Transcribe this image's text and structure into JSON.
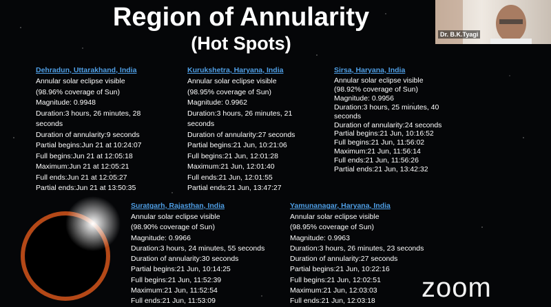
{
  "slide": {
    "title": "Region of Annularity",
    "subtitle": "(Hot Spots)",
    "locations": [
      {
        "name": "Dehradun, Uttarakhand, India",
        "lines": [
          "Annular solar eclipse visible",
          "(98.96% coverage of Sun)",
          "Magnitude: 0.9948",
          "Duration:3 hours, 26 minutes, 28",
          "seconds",
          "Duration of annularity:9 seconds",
          "Partial begins:Jun 21 at 10:24:07",
          "Full begins:Jun 21 at 12:05:18",
          "Maximum:Jun 21 at 12:05:21",
          "Full ends:Jun 21 at 12:05:27",
          "Partial ends:Jun 21 at 13:50:35"
        ]
      },
      {
        "name": "Kurukshetra, Haryana, India",
        "lines": [
          "Annular solar eclipse visible",
          "(98.95% coverage of Sun)",
          "Magnitude: 0.9962",
          "Duration:3 hours, 26 minutes, 21",
          "seconds",
          "Duration of annularity:27 seconds",
          "Partial begins:21 Jun, 10:21:06",
          "Full begins:21 Jun, 12:01:28",
          "Maximum:21 Jun, 12:01:40",
          "Full ends:21 Jun, 12:01:55",
          "Partial ends:21 Jun, 13:47:27"
        ]
      },
      {
        "name": "Sirsa, Haryana, India",
        "lines": [
          "Annular solar eclipse visible",
          "(98.92% coverage of Sun)",
          "Magnitude: 0.9956",
          "Duration:3 hours, 25 minutes, 40",
          "seconds",
          "Duration of annularity:24 seconds",
          "Partial begins:21 Jun, 10:16:52",
          "Full begins:21 Jun, 11:56:02",
          "Maximum:21 Jun, 11:56:14",
          "Full ends:21 Jun, 11:56:26",
          "Partial ends:21 Jun, 13:42:32"
        ]
      },
      {
        "name": "Suratgarh, Rajasthan, India",
        "lines": [
          "Annular solar eclipse visible",
          "(98.90% coverage of Sun)",
          "Magnitude: 0.9966",
          "Duration:3 hours, 24 minutes, 55 seconds",
          "Duration of annularity:30 seconds",
          "Partial begins:21 Jun, 10:14:25",
          "Full begins:21 Jun, 11:52:39",
          "Maximum:21 Jun, 11:52:54",
          "Full ends:21 Jun, 11:53:09"
        ]
      },
      {
        "name": "Yamunanagar, Haryana, India",
        "lines": [
          "Annular solar eclipse visible",
          "(98.95% coverage of Sun)",
          "Magnitude: 0.9963",
          "Duration:3 hours, 26 minutes, 23 seconds",
          "Duration of annularity:27 seconds",
          "Partial begins:21 Jun, 10:22:16",
          "Full begins:21 Jun, 12:02:51",
          "Maximum:21 Jun, 12:03:03",
          "Full ends:21 Jun, 12:03:18"
        ]
      }
    ]
  },
  "video_tile": {
    "participant": "Dr. B.K.Tyagi"
  },
  "watermark": "zoom"
}
